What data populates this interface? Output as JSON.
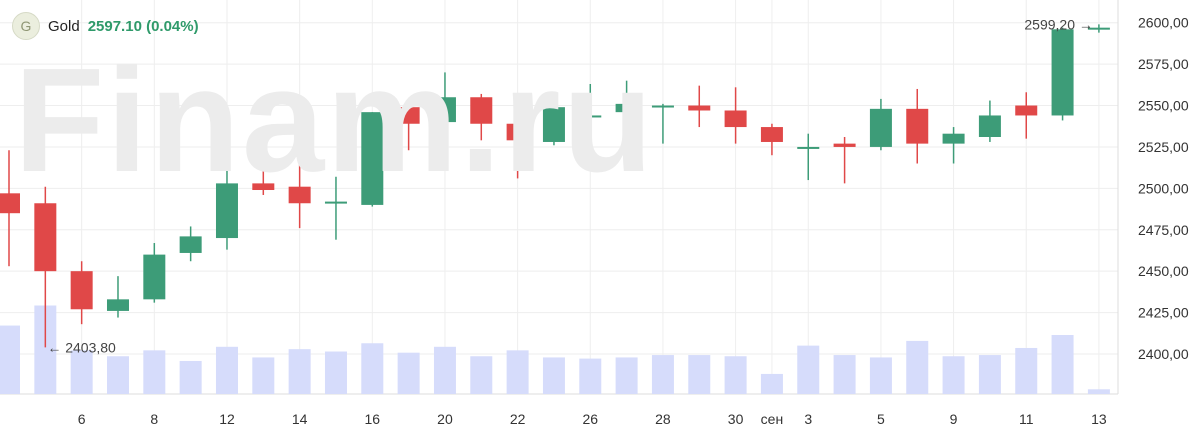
{
  "header": {
    "badge_letter": "G",
    "instrument": "Gold",
    "price_text": "2597.10 (0.04%)"
  },
  "watermark": "Finam.ru",
  "colors": {
    "up": "#3d9c78",
    "down": "#e04848",
    "volume": "#d6dcfb",
    "grid": "#eeeeee"
  },
  "chart_data": {
    "type": "candlestick",
    "title": "",
    "ylim": [
      2382,
      2612
    ],
    "yticks": [
      "2400,00",
      "2425,00",
      "2450,00",
      "2475,00",
      "2500,00",
      "2525,00",
      "2550,00",
      "2575,00",
      "2600,00"
    ],
    "ytick_values": [
      2400,
      2425,
      2450,
      2475,
      2500,
      2525,
      2550,
      2575,
      2600
    ],
    "xtick_labels": [
      "6",
      "8",
      "12",
      "14",
      "16",
      "20",
      "22",
      "26",
      "28",
      "30",
      "сен",
      "3",
      "5",
      "9",
      "11",
      "13"
    ],
    "xtick_slots": [
      2,
      4,
      6,
      8,
      10,
      12,
      14,
      16,
      18,
      20,
      21,
      22,
      24,
      26,
      28,
      30
    ],
    "candles": [
      {
        "o": 2497,
        "h": 2523,
        "l": 2453,
        "c": 2485
      },
      {
        "o": 2491,
        "h": 2501,
        "l": 2404,
        "c": 2450
      },
      {
        "o": 2450,
        "h": 2456,
        "l": 2418,
        "c": 2427
      },
      {
        "o": 2426,
        "h": 2447,
        "l": 2422,
        "c": 2433
      },
      {
        "o": 2433,
        "h": 2467,
        "l": 2431,
        "c": 2460
      },
      {
        "o": 2461,
        "h": 2477,
        "l": 2456,
        "c": 2471
      },
      {
        "o": 2470,
        "h": 2517,
        "l": 2463,
        "c": 2503
      },
      {
        "o": 2503,
        "h": 2515,
        "l": 2496,
        "c": 2499
      },
      {
        "o": 2501,
        "h": 2520,
        "l": 2476,
        "c": 2491
      },
      {
        "o": 2492,
        "h": 2507,
        "l": 2469,
        "c": 2492
      },
      {
        "o": 2490,
        "h": 2546,
        "l": 2489,
        "c": 2546
      },
      {
        "o": 2549,
        "h": 2551,
        "l": 2523,
        "c": 2539
      },
      {
        "o": 2540,
        "h": 2570,
        "l": 2536,
        "c": 2555
      },
      {
        "o": 2555,
        "h": 2557,
        "l": 2529,
        "c": 2539
      },
      {
        "o": 2539,
        "h": 2542,
        "l": 2506,
        "c": 2529
      },
      {
        "o": 2528,
        "h": 2554,
        "l": 2526,
        "c": 2549
      },
      {
        "o": 2544,
        "h": 2563,
        "l": 2538,
        "c": 2544
      },
      {
        "o": 2546,
        "h": 2565,
        "l": 2537,
        "c": 2551
      },
      {
        "o": 2550,
        "h": 2551,
        "l": 2527,
        "c": 2550
      },
      {
        "o": 2550,
        "h": 2562,
        "l": 2537,
        "c": 2547
      },
      {
        "o": 2547,
        "h": 2561,
        "l": 2527,
        "c": 2537
      },
      {
        "o": 2537,
        "h": 2539,
        "l": 2520,
        "c": 2528
      },
      {
        "o": 2525,
        "h": 2533,
        "l": 2505,
        "c": 2525
      },
      {
        "o": 2527,
        "h": 2531,
        "l": 2503,
        "c": 2525
      },
      {
        "o": 2525,
        "h": 2554,
        "l": 2523,
        "c": 2548
      },
      {
        "o": 2548,
        "h": 2560,
        "l": 2515,
        "c": 2527
      },
      {
        "o": 2527,
        "h": 2537,
        "l": 2515,
        "c": 2533
      },
      {
        "o": 2531,
        "h": 2553,
        "l": 2528,
        "c": 2544
      },
      {
        "o": 2550,
        "h": 2558,
        "l": 2530,
        "c": 2544
      },
      {
        "o": 2544,
        "h": 2597,
        "l": 2541,
        "c": 2596
      },
      {
        "o": 2596,
        "h": 2599,
        "l": 2594,
        "c": 2597
      }
    ],
    "volume": [
      0.58,
      0.75,
      0.37,
      0.32,
      0.37,
      0.28,
      0.4,
      0.31,
      0.38,
      0.36,
      0.43,
      0.35,
      0.4,
      0.32,
      0.37,
      0.31,
      0.3,
      0.31,
      0.33,
      0.33,
      0.32,
      0.17,
      0.41,
      0.33,
      0.31,
      0.45,
      0.32,
      0.33,
      0.39,
      0.5,
      0.04
    ],
    "annotations": {
      "low_label": "← 2403,80",
      "high_label": "2599,20 →"
    }
  }
}
